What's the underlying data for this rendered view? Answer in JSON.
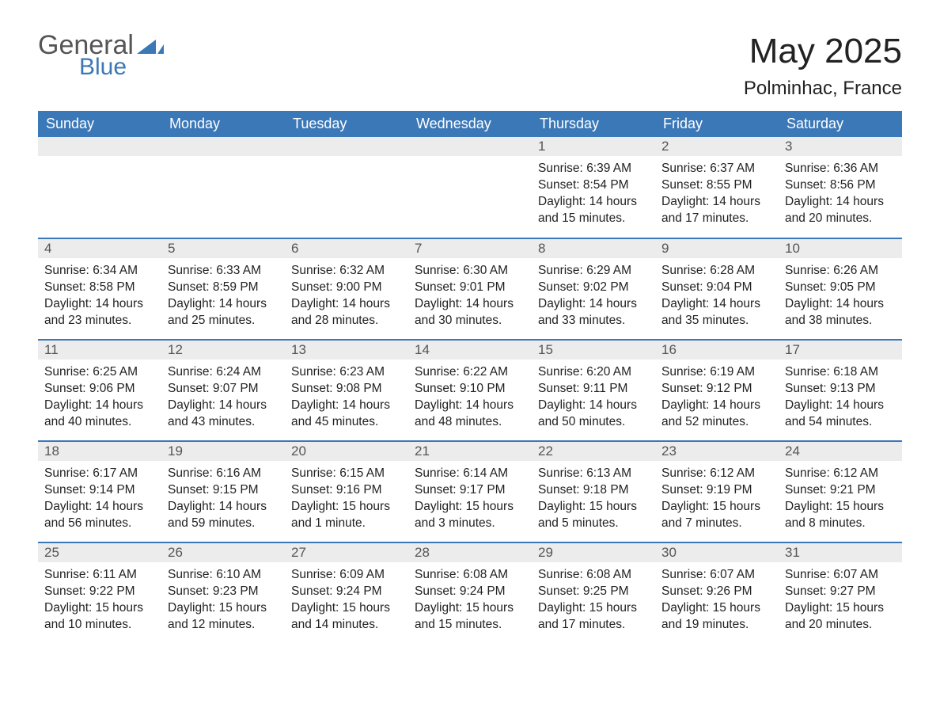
{
  "logo": {
    "general": "General",
    "blue": "Blue"
  },
  "title": "May 2025",
  "location": "Polminhac, France",
  "colors": {
    "header_bg": "#3b78b8",
    "header_text": "#ffffff",
    "daynum_bg": "#ececec",
    "daynum_text": "#555555",
    "body_text": "#222222",
    "row_border": "#3b78b8",
    "page_bg": "#ffffff"
  },
  "fonts": {
    "title_size_pt": 33,
    "location_size_pt": 18,
    "header_size_pt": 14,
    "daynum_size_pt": 13,
    "body_size_pt": 12
  },
  "weekday_labels": [
    "Sunday",
    "Monday",
    "Tuesday",
    "Wednesday",
    "Thursday",
    "Friday",
    "Saturday"
  ],
  "calendar": {
    "type": "table",
    "columns": 7,
    "rows": 5,
    "first_weekday_index": 4,
    "days": [
      {
        "n": 1,
        "sunrise": "6:39 AM",
        "sunset": "8:54 PM",
        "daylight": "14 hours and 15 minutes."
      },
      {
        "n": 2,
        "sunrise": "6:37 AM",
        "sunset": "8:55 PM",
        "daylight": "14 hours and 17 minutes."
      },
      {
        "n": 3,
        "sunrise": "6:36 AM",
        "sunset": "8:56 PM",
        "daylight": "14 hours and 20 minutes."
      },
      {
        "n": 4,
        "sunrise": "6:34 AM",
        "sunset": "8:58 PM",
        "daylight": "14 hours and 23 minutes."
      },
      {
        "n": 5,
        "sunrise": "6:33 AM",
        "sunset": "8:59 PM",
        "daylight": "14 hours and 25 minutes."
      },
      {
        "n": 6,
        "sunrise": "6:32 AM",
        "sunset": "9:00 PM",
        "daylight": "14 hours and 28 minutes."
      },
      {
        "n": 7,
        "sunrise": "6:30 AM",
        "sunset": "9:01 PM",
        "daylight": "14 hours and 30 minutes."
      },
      {
        "n": 8,
        "sunrise": "6:29 AM",
        "sunset": "9:02 PM",
        "daylight": "14 hours and 33 minutes."
      },
      {
        "n": 9,
        "sunrise": "6:28 AM",
        "sunset": "9:04 PM",
        "daylight": "14 hours and 35 minutes."
      },
      {
        "n": 10,
        "sunrise": "6:26 AM",
        "sunset": "9:05 PM",
        "daylight": "14 hours and 38 minutes."
      },
      {
        "n": 11,
        "sunrise": "6:25 AM",
        "sunset": "9:06 PM",
        "daylight": "14 hours and 40 minutes."
      },
      {
        "n": 12,
        "sunrise": "6:24 AM",
        "sunset": "9:07 PM",
        "daylight": "14 hours and 43 minutes."
      },
      {
        "n": 13,
        "sunrise": "6:23 AM",
        "sunset": "9:08 PM",
        "daylight": "14 hours and 45 minutes."
      },
      {
        "n": 14,
        "sunrise": "6:22 AM",
        "sunset": "9:10 PM",
        "daylight": "14 hours and 48 minutes."
      },
      {
        "n": 15,
        "sunrise": "6:20 AM",
        "sunset": "9:11 PM",
        "daylight": "14 hours and 50 minutes."
      },
      {
        "n": 16,
        "sunrise": "6:19 AM",
        "sunset": "9:12 PM",
        "daylight": "14 hours and 52 minutes."
      },
      {
        "n": 17,
        "sunrise": "6:18 AM",
        "sunset": "9:13 PM",
        "daylight": "14 hours and 54 minutes."
      },
      {
        "n": 18,
        "sunrise": "6:17 AM",
        "sunset": "9:14 PM",
        "daylight": "14 hours and 56 minutes."
      },
      {
        "n": 19,
        "sunrise": "6:16 AM",
        "sunset": "9:15 PM",
        "daylight": "14 hours and 59 minutes."
      },
      {
        "n": 20,
        "sunrise": "6:15 AM",
        "sunset": "9:16 PM",
        "daylight": "15 hours and 1 minute."
      },
      {
        "n": 21,
        "sunrise": "6:14 AM",
        "sunset": "9:17 PM",
        "daylight": "15 hours and 3 minutes."
      },
      {
        "n": 22,
        "sunrise": "6:13 AM",
        "sunset": "9:18 PM",
        "daylight": "15 hours and 5 minutes."
      },
      {
        "n": 23,
        "sunrise": "6:12 AM",
        "sunset": "9:19 PM",
        "daylight": "15 hours and 7 minutes."
      },
      {
        "n": 24,
        "sunrise": "6:12 AM",
        "sunset": "9:21 PM",
        "daylight": "15 hours and 8 minutes."
      },
      {
        "n": 25,
        "sunrise": "6:11 AM",
        "sunset": "9:22 PM",
        "daylight": "15 hours and 10 minutes."
      },
      {
        "n": 26,
        "sunrise": "6:10 AM",
        "sunset": "9:23 PM",
        "daylight": "15 hours and 12 minutes."
      },
      {
        "n": 27,
        "sunrise": "6:09 AM",
        "sunset": "9:24 PM",
        "daylight": "15 hours and 14 minutes."
      },
      {
        "n": 28,
        "sunrise": "6:08 AM",
        "sunset": "9:24 PM",
        "daylight": "15 hours and 15 minutes."
      },
      {
        "n": 29,
        "sunrise": "6:08 AM",
        "sunset": "9:25 PM",
        "daylight": "15 hours and 17 minutes."
      },
      {
        "n": 30,
        "sunrise": "6:07 AM",
        "sunset": "9:26 PM",
        "daylight": "15 hours and 19 minutes."
      },
      {
        "n": 31,
        "sunrise": "6:07 AM",
        "sunset": "9:27 PM",
        "daylight": "15 hours and 20 minutes."
      }
    ],
    "labels": {
      "sunrise": "Sunrise:",
      "sunset": "Sunset:",
      "daylight": "Daylight:"
    }
  }
}
